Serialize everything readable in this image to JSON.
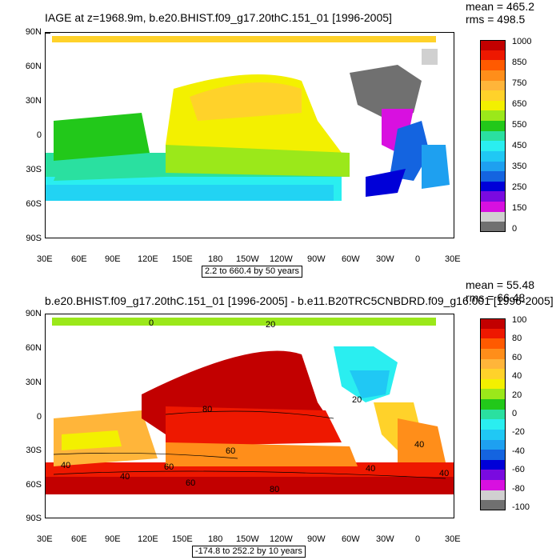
{
  "top": {
    "title": "IAGE at z=1968.9m, b.e20.BHIST.f09_g17.20thC.151_01 [1996-2005]",
    "mean": "mean = 465.2",
    "rms": "rms = 498.5",
    "range_label": "2.2 to 660.4 by 50 years",
    "colorbar": {
      "labels": [
        "1000",
        "850",
        "750",
        "650",
        "550",
        "450",
        "350",
        "250",
        "150",
        "0"
      ],
      "colors": [
        "#c20000",
        "#ee1800",
        "#ff5a00",
        "#ff8e1a",
        "#ffb53a",
        "#ffd22a",
        "#f3f000",
        "#9be81a",
        "#22c81a",
        "#2ae0a0",
        "#2aeef0",
        "#20c8f4",
        "#1ea0f0",
        "#1464e0",
        "#0000d8",
        "#7a0ae0",
        "#d810e0",
        "#d0d0d0",
        "#707070"
      ]
    }
  },
  "bottom": {
    "title": "b.e20.BHIST.f09_g17.20thC.151_01 [1996-2005] - b.e11.B20TRC5CNBDRD.f09_g16.001 [1996-2005]",
    "mean": "mean = 55.48",
    "rms": "rms = 66.48",
    "range_label": "-174.8 to 252.2 by 10 years",
    "colorbar": {
      "labels": [
        "100",
        "80",
        "60",
        "40",
        "20",
        "0",
        "-20",
        "-40",
        "-60",
        "-80",
        "-100"
      ],
      "colors": [
        "#c20000",
        "#ee1800",
        "#ff5a00",
        "#ff8e1a",
        "#ffb53a",
        "#ffd22a",
        "#f3f000",
        "#9be81a",
        "#22c81a",
        "#2ae0a0",
        "#2aeef0",
        "#20c8f4",
        "#1ea0f0",
        "#1464e0",
        "#0000d8",
        "#7a0ae0",
        "#d810e0",
        "#d0d0d0",
        "#707070"
      ]
    },
    "contour_labels": [
      "80",
      "60",
      "40",
      "60",
      "60",
      "80",
      "40",
      "20",
      "40",
      "40",
      "40",
      "0",
      "20"
    ]
  },
  "axes": {
    "lat": [
      "90N",
      "60N",
      "30N",
      "0",
      "30S",
      "60S",
      "90S"
    ],
    "lon": [
      "30E",
      "60E",
      "90E",
      "120E",
      "150E",
      "180",
      "150W",
      "120W",
      "90W",
      "60W",
      "30W",
      "0",
      "30E"
    ]
  }
}
